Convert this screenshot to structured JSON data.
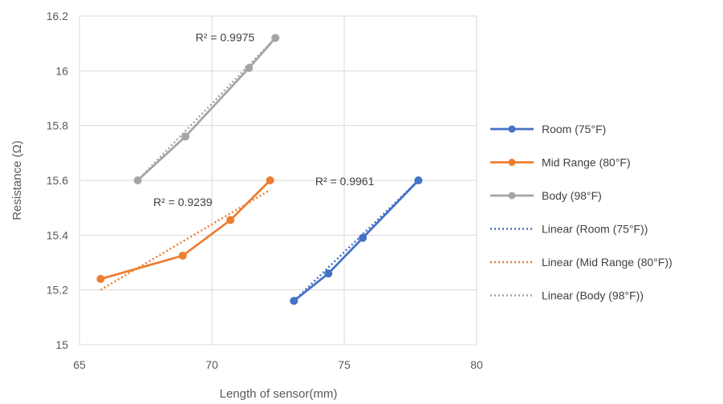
{
  "chart_data": {
    "type": "line",
    "title": "",
    "xlabel": "Length of sensor(mm)",
    "ylabel": "Resistance (Ω)",
    "xlim": [
      65,
      80
    ],
    "ylim": [
      15,
      16.2
    ],
    "xticks": [
      65,
      70,
      75,
      80
    ],
    "yticks": [
      15,
      15.2,
      15.4,
      15.6,
      15.8,
      16,
      16.2
    ],
    "xtick_labels": [
      "65",
      "70",
      "75",
      "80"
    ],
    "ytick_labels": [
      "15",
      "15.2",
      "15.4",
      "15.6",
      "15.8",
      "16",
      "16.2"
    ],
    "grid": true,
    "legend_position": "right",
    "series": [
      {
        "name": "Room (75°F)",
        "color": "#4472C4",
        "x": [
          73.1,
          74.4,
          75.7,
          77.8
        ],
        "y": [
          15.16,
          15.26,
          15.39,
          15.6
        ]
      },
      {
        "name": "Mid Range (80°F)",
        "color": "#ED7D31",
        "x": [
          65.8,
          68.9,
          70.7,
          72.2
        ],
        "y": [
          15.24,
          15.325,
          15.455,
          15.6
        ]
      },
      {
        "name": "Body (98°F)",
        "color": "#A5A5A5",
        "x": [
          67.2,
          69.0,
          71.4,
          72.4
        ],
        "y": [
          15.6,
          15.76,
          16.01,
          16.12
        ]
      }
    ],
    "trendlines": [
      {
        "name": "Linear (Room (75°F))",
        "color": "#4472C4",
        "r2_label": "R² = 0.9961",
        "x": [
          73.1,
          77.8
        ],
        "y": [
          15.16,
          15.6
        ]
      },
      {
        "name": "Linear (Mid Range (80°F))",
        "color": "#ED7D31",
        "r2_label": "R² = 0.9239",
        "x": [
          65.8,
          72.2
        ],
        "y": [
          15.2,
          15.565
        ]
      },
      {
        "name": "Linear (Body (98°F))",
        "color": "#A5A5A5",
        "r2_label": "R² = 0.9975",
        "x": [
          67.2,
          72.4
        ],
        "y": [
          15.6,
          16.12
        ]
      }
    ]
  }
}
